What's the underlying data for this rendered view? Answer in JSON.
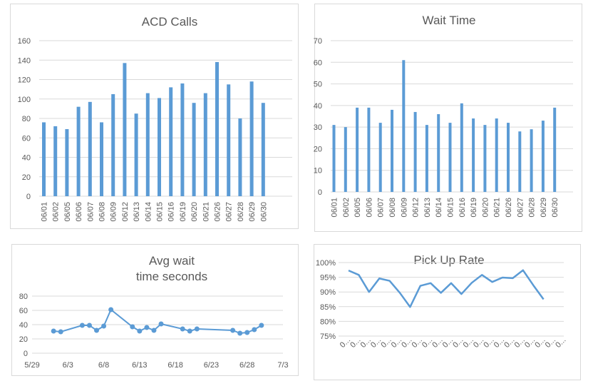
{
  "chart_data": [
    {
      "type": "bar",
      "title": "ACD Calls",
      "categories": [
        "06/01",
        "06/02",
        "06/05",
        "06/06",
        "06/07",
        "06/08",
        "06/09",
        "06/12",
        "06/13",
        "06/14",
        "06/15",
        "06/16",
        "06/19",
        "06/20",
        "06/21",
        "06/26",
        "06/27",
        "06/28",
        "06/29",
        "06/30"
      ],
      "values": [
        76,
        72,
        69,
        92,
        97,
        76,
        105,
        137,
        85,
        106,
        101,
        112,
        116,
        96,
        106,
        138,
        115,
        80,
        118,
        96
      ],
      "ylim": [
        0,
        160
      ],
      "yticks": [
        0,
        20,
        40,
        60,
        80,
        100,
        120,
        140,
        160
      ],
      "grid": true,
      "color": "#5b9bd5"
    },
    {
      "type": "bar",
      "title": "Wait Time",
      "categories": [
        "06/01",
        "06/02",
        "06/05",
        "06/06",
        "06/07",
        "06/08",
        "06/09",
        "06/12",
        "06/13",
        "06/14",
        "06/15",
        "06/16",
        "06/19",
        "06/20",
        "06/21",
        "06/26",
        "06/27",
        "06/28",
        "06/29",
        "06/30"
      ],
      "values": [
        31,
        30,
        39,
        39,
        32,
        38,
        61,
        37,
        31,
        36,
        32,
        41,
        34,
        31,
        34,
        32,
        28,
        29,
        33,
        39
      ],
      "ylim": [
        0,
        70
      ],
      "yticks": [
        0,
        10,
        20,
        30,
        40,
        50,
        60,
        70
      ],
      "grid": true,
      "color": "#5b9bd5"
    },
    {
      "type": "line",
      "title": "Avg wait time seconds",
      "title_lines": [
        "Avg wait",
        "time seconds"
      ],
      "x": [
        "2023-06-01",
        "2023-06-02",
        "2023-06-05",
        "2023-06-06",
        "2023-06-07",
        "2023-06-08",
        "2023-06-09",
        "2023-06-12",
        "2023-06-13",
        "2023-06-14",
        "2023-06-15",
        "2023-06-16",
        "2023-06-19",
        "2023-06-20",
        "2023-06-21",
        "2023-06-26",
        "2023-06-27",
        "2023-06-28",
        "2023-06-29",
        "2023-06-30"
      ],
      "values": [
        31,
        30,
        39,
        39,
        32,
        38,
        61,
        37,
        31,
        36,
        32,
        41,
        34,
        31,
        34,
        32,
        28,
        29,
        33,
        39
      ],
      "xticks": [
        "5/29",
        "6/3",
        "6/8",
        "6/13",
        "6/18",
        "6/23",
        "6/28",
        "7/3"
      ],
      "ylim": [
        0,
        80
      ],
      "yticks": [
        0,
        20,
        40,
        60,
        80
      ],
      "markers": true,
      "grid": true,
      "color": "#5b9bd5"
    },
    {
      "type": "line",
      "title": "Pick Up Rate",
      "values": [
        97.3,
        95.8,
        90.0,
        94.6,
        93.8,
        89.7,
        84.9,
        92.1,
        93.0,
        89.7,
        93.0,
        89.3,
        93.1,
        95.8,
        93.4,
        94.9,
        94.7,
        97.4,
        92.3,
        87.5
      ],
      "categories_label": "0...",
      "ylim": [
        75,
        100
      ],
      "yticks": [
        "75%",
        "80%",
        "85%",
        "90%",
        "95%",
        "100%"
      ],
      "grid": true,
      "color": "#5b9bd5"
    }
  ]
}
